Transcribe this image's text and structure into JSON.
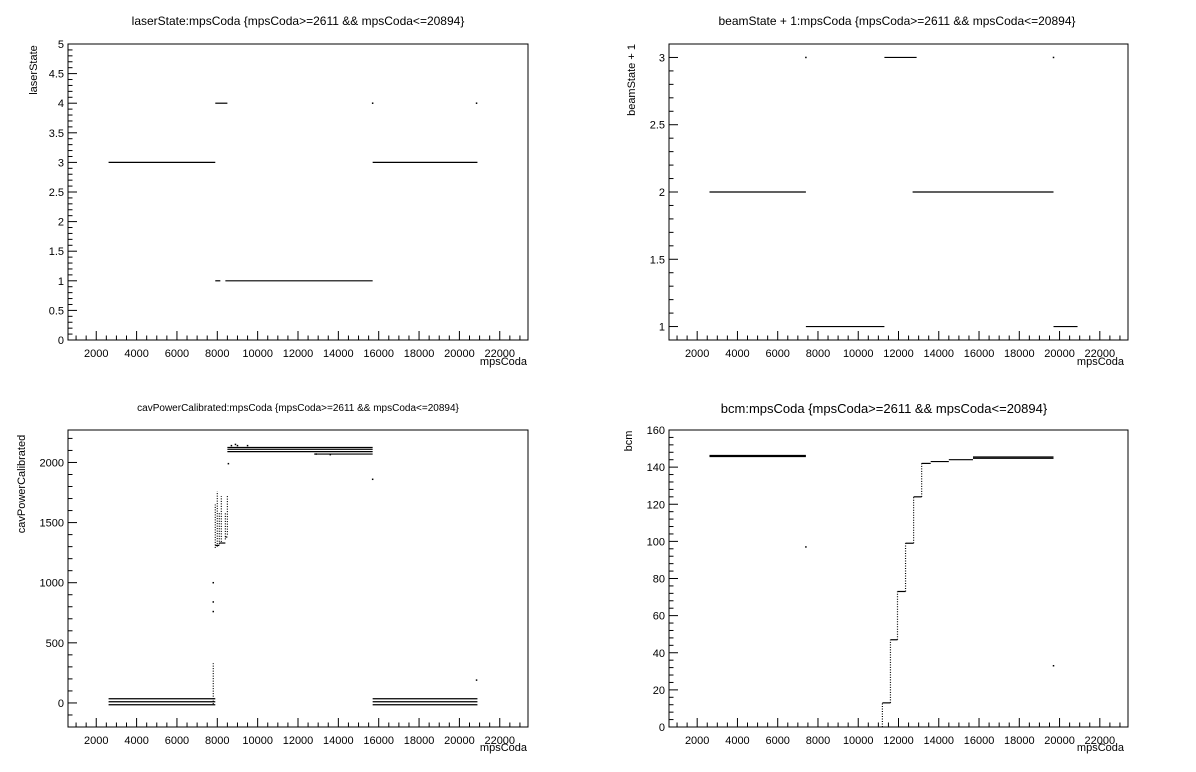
{
  "chart_data": [
    {
      "type": "scatter",
      "title": "laserState:mpsCoda {mpsCoda>=2611 && mpsCoda<=20894}",
      "xlabel": "mpsCoda",
      "ylabel": "laserState",
      "xlim": [
        600,
        23400
      ],
      "ylim": [
        0,
        5
      ],
      "xticks": [
        2000,
        4000,
        6000,
        8000,
        10000,
        12000,
        14000,
        16000,
        18000,
        20000,
        22000
      ],
      "yticks": [
        0,
        0.5,
        1,
        1.5,
        2,
        2.5,
        3,
        3.5,
        4,
        4.5,
        5
      ],
      "yticklabels": [
        "0",
        "0.5",
        "1",
        "1.5",
        "2",
        "2.5",
        "3",
        "3.5",
        "4",
        "4.5",
        "5"
      ],
      "segments": [
        {
          "x0": 2611,
          "x1": 7900,
          "y": 3
        },
        {
          "x0": 7900,
          "x1": 8500,
          "y": 4
        },
        {
          "x0": 7900,
          "x1": 8150,
          "y": 1
        },
        {
          "x0": 8400,
          "x1": 15700,
          "y": 1
        },
        {
          "x0": 15700,
          "x1": 20894,
          "y": 3
        }
      ],
      "points": [
        {
          "x": 15700,
          "y": 4
        },
        {
          "x": 20850,
          "y": 4
        }
      ]
    },
    {
      "type": "scatter",
      "title": "beamState + 1:mpsCoda {mpsCoda>=2611 && mpsCoda<=20894}",
      "xlabel": "mpsCoda",
      "ylabel": "beamState + 1",
      "xlim": [
        600,
        23400
      ],
      "ylim": [
        0.9,
        3.1
      ],
      "xticks": [
        2000,
        4000,
        6000,
        8000,
        10000,
        12000,
        14000,
        16000,
        18000,
        20000,
        22000
      ],
      "yticks": [
        1,
        1.5,
        2,
        2.5,
        3
      ],
      "yticklabels": [
        "1",
        "1.5",
        "2",
        "2.5",
        "3"
      ],
      "segments": [
        {
          "x0": 2611,
          "x1": 7400,
          "y": 2
        },
        {
          "x0": 7400,
          "x1": 11300,
          "y": 1
        },
        {
          "x0": 11300,
          "x1": 12900,
          "y": 3
        },
        {
          "x0": 12700,
          "x1": 19700,
          "y": 2
        },
        {
          "x0": 19700,
          "x1": 20894,
          "y": 1
        }
      ],
      "points": [
        {
          "x": 7400,
          "y": 3
        },
        {
          "x": 19700,
          "y": 3
        }
      ]
    },
    {
      "type": "scatter",
      "title": "cavPowerCalibrated:mpsCoda {mpsCoda>=2611 && mpsCoda<=20894}",
      "xlabel": "mpsCoda",
      "ylabel": "cavPowerCalibrated",
      "xlim": [
        600,
        23400
      ],
      "ylim": [
        -200,
        2270
      ],
      "xticks": [
        2000,
        4000,
        6000,
        8000,
        10000,
        12000,
        14000,
        16000,
        18000,
        20000,
        22000
      ],
      "yticks": [
        0,
        500,
        1000,
        1500,
        2000
      ],
      "yticklabels": [
        "0",
        "500",
        "1000",
        "1500",
        "2000"
      ],
      "segments": [
        {
          "x0": 2611,
          "x1": 7900,
          "y": 35
        },
        {
          "x0": 2611,
          "x1": 7900,
          "y": 10
        },
        {
          "x0": 2611,
          "x1": 7900,
          "y": -15
        },
        {
          "x0": 8500,
          "x1": 15700,
          "y": 2110
        },
        {
          "x0": 8500,
          "x1": 15700,
          "y": 2090
        },
        {
          "x0": 12800,
          "x1": 15700,
          "y": 2070
        },
        {
          "x0": 8500,
          "x1": 15700,
          "y": 2125
        },
        {
          "x0": 15700,
          "x1": 20894,
          "y": 35
        },
        {
          "x0": 15700,
          "x1": 20894,
          "y": 10
        },
        {
          "x0": 15700,
          "x1": 20894,
          "y": -15
        },
        {
          "x0": 7900,
          "x1": 8100,
          "y": 1310
        },
        {
          "x0": 8100,
          "x1": 8400,
          "y": 1330
        },
        {
          "x0": 8400,
          "x1": 8500,
          "y": 1380
        }
      ],
      "vranges": [
        {
          "x": 7800,
          "y0": -10,
          "y1": 330
        },
        {
          "x": 7900,
          "y0": 1290,
          "y1": 1650
        },
        {
          "x": 8000,
          "y0": 1300,
          "y1": 1760
        },
        {
          "x": 8100,
          "y0": 1320,
          "y1": 1580
        },
        {
          "x": 8200,
          "y0": 1340,
          "y1": 1720
        },
        {
          "x": 8400,
          "y0": 1360,
          "y1": 1580
        },
        {
          "x": 8500,
          "y0": 1400,
          "y1": 1720
        }
      ],
      "points": [
        {
          "x": 7800,
          "y": 1000
        },
        {
          "x": 7800,
          "y": 840
        },
        {
          "x": 7800,
          "y": 760
        },
        {
          "x": 8550,
          "y": 1990
        },
        {
          "x": 15700,
          "y": 1860
        },
        {
          "x": 20850,
          "y": 190
        },
        {
          "x": 8700,
          "y": 2140
        },
        {
          "x": 9000,
          "y": 2140
        },
        {
          "x": 9500,
          "y": 2140
        },
        {
          "x": 8900,
          "y": 2150
        },
        {
          "x": 12900,
          "y": 2070
        },
        {
          "x": 13600,
          "y": 2065
        }
      ]
    },
    {
      "type": "scatter",
      "title": "bcm:mpsCoda {mpsCoda>=2611 && mpsCoda<=20894}",
      "xlabel": "mpsCoda",
      "ylabel": "bcm",
      "xlim": [
        600,
        23400
      ],
      "ylim": [
        0,
        160
      ],
      "xticks": [
        2000,
        4000,
        6000,
        8000,
        10000,
        12000,
        14000,
        16000,
        18000,
        20000,
        22000
      ],
      "yticks": [
        0,
        20,
        40,
        60,
        80,
        100,
        120,
        140,
        160
      ],
      "yticklabels": [
        "0",
        "20",
        "40",
        "60",
        "80",
        "100",
        "120",
        "140",
        "160"
      ],
      "segments": [
        {
          "x0": 2611,
          "x1": 7400,
          "y": 146.3
        },
        {
          "x0": 2611,
          "x1": 7400,
          "y": 145.7
        },
        {
          "x0": 11200,
          "x1": 11600,
          "y": 13
        },
        {
          "x0": 11600,
          "x1": 11950,
          "y": 47
        },
        {
          "x0": 11950,
          "x1": 12350,
          "y": 73
        },
        {
          "x0": 12350,
          "x1": 12750,
          "y": 99
        },
        {
          "x0": 12750,
          "x1": 13150,
          "y": 124
        },
        {
          "x0": 13150,
          "x1": 13600,
          "y": 142
        },
        {
          "x0": 13600,
          "x1": 14500,
          "y": 143
        },
        {
          "x0": 14500,
          "x1": 15700,
          "y": 144
        },
        {
          "x0": 15700,
          "x1": 19700,
          "y": 145.5
        },
        {
          "x0": 15700,
          "x1": 19700,
          "y": 144.8
        }
      ],
      "vranges": [
        {
          "x": 11200,
          "y0": 0,
          "y1": 13
        },
        {
          "x": 11600,
          "y0": 13,
          "y1": 47
        },
        {
          "x": 11950,
          "y0": 47,
          "y1": 73
        },
        {
          "x": 12350,
          "y0": 73,
          "y1": 99
        },
        {
          "x": 12750,
          "y0": 99,
          "y1": 124
        },
        {
          "x": 13150,
          "y0": 124,
          "y1": 142
        }
      ],
      "points": [
        {
          "x": 7400,
          "y": 97
        },
        {
          "x": 19700,
          "y": 33
        }
      ]
    }
  ]
}
